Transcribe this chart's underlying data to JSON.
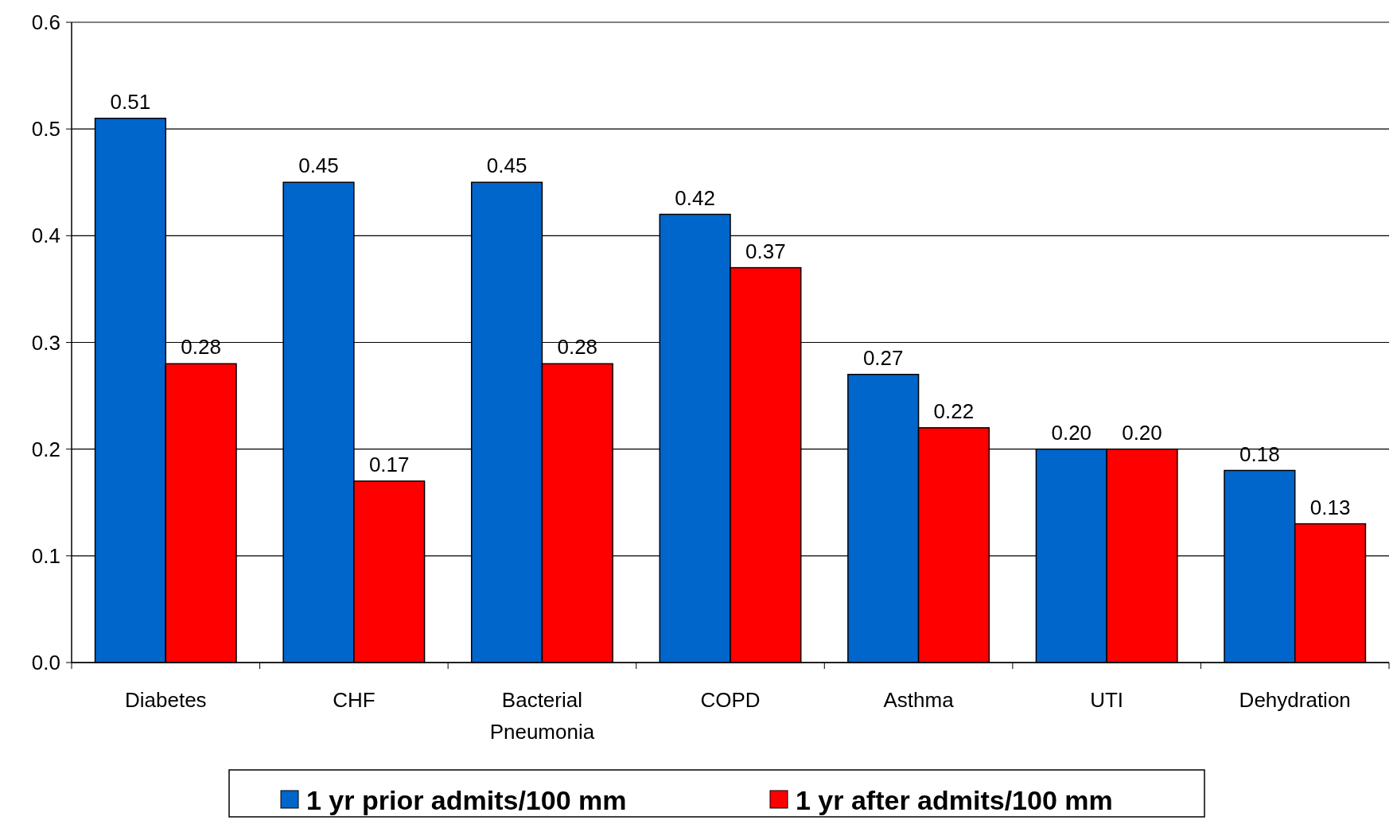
{
  "chart_data": {
    "type": "bar",
    "categories": [
      "Diabetes",
      "CHF",
      "Bacterial Pneumonia",
      "COPD",
      "Asthma",
      "UTI",
      "Dehydration"
    ],
    "series": [
      {
        "name": "1 yr prior admits/100 mm",
        "color": "#0066cc",
        "values": [
          0.51,
          0.45,
          0.45,
          0.42,
          0.27,
          0.2,
          0.18
        ],
        "value_labels": [
          "0.51",
          "0.45",
          "0.45",
          "0.42",
          "0.27",
          "0.20",
          "0.18"
        ]
      },
      {
        "name": "1 yr after admits/100 mm",
        "color": "#ff0000",
        "values": [
          0.28,
          0.17,
          0.28,
          0.37,
          0.22,
          0.2,
          0.13
        ],
        "value_labels": [
          "0.28",
          "0.17",
          "0.28",
          "0.37",
          "0.22",
          "0.20",
          "0.13"
        ]
      }
    ],
    "ylim": [
      0,
      0.6
    ],
    "yticks": [
      {
        "value": 0,
        "label": "0.0"
      },
      {
        "value": 0.1,
        "label": "0.1"
      },
      {
        "value": 0.2,
        "label": "0.2"
      },
      {
        "value": 0.3,
        "label": "0.3"
      },
      {
        "value": 0.4,
        "label": "0.4"
      },
      {
        "value": 0.5,
        "label": "0.5"
      },
      {
        "value": 0.6,
        "label": "0.6"
      }
    ],
    "grid": "y",
    "legend": "bottom"
  }
}
